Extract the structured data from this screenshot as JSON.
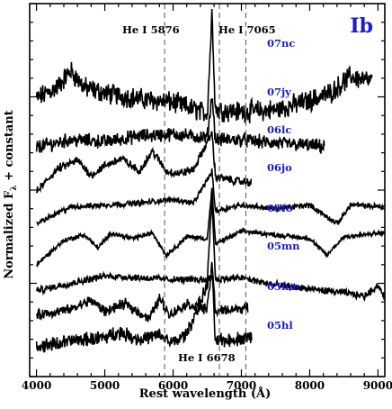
{
  "chart_data": {
    "type": "line",
    "panel_label": "Ib",
    "xlabel": "Rest wavelength (Å)",
    "ylabel": "Normalized F",
    "ylabel_sub": "λ",
    "ylabel_suffix": " + constant",
    "xlim": [
      3900,
      9100
    ],
    "x_ticks": [
      4000,
      5000,
      6000,
      7000,
      8000,
      9000
    ],
    "grid": false,
    "legend": "none",
    "label_color": "#1a1ad6",
    "line_color": "#000000",
    "reference_lines": [
      {
        "label": "He I 5876",
        "x": 5876
      },
      {
        "label": "He I 6678",
        "x": 6678
      },
      {
        "label": "He I 7065",
        "x": 7065
      }
    ],
    "series": [
      {
        "name": "07nc",
        "x_start": 4000,
        "x_end": 8920,
        "baseline": 14.0,
        "profile": [
          [
            4000,
            -0.6
          ],
          [
            4300,
            0.0
          ],
          [
            4500,
            0.9
          ],
          [
            4700,
            0.0
          ],
          [
            5000,
            -0.3
          ],
          [
            5500,
            -0.6
          ],
          [
            6000,
            -0.8
          ],
          [
            6500,
            -1.4
          ],
          [
            6570,
            4.0
          ],
          [
            6620,
            -1.2
          ],
          [
            7000,
            -1.3
          ],
          [
            7500,
            -1.2
          ],
          [
            8000,
            -0.7
          ],
          [
            8300,
            -0.3
          ],
          [
            8600,
            0.6
          ],
          [
            8920,
            0.3
          ]
        ],
        "noise": 0.45
      },
      {
        "name": "07jy",
        "x_start": 4000,
        "x_end": 8220,
        "baseline": 11.4,
        "profile": [
          [
            4000,
            -0.6
          ],
          [
            4500,
            -0.2
          ],
          [
            5000,
            -0.3
          ],
          [
            5500,
            0.0
          ],
          [
            6000,
            0.1
          ],
          [
            6500,
            -0.1
          ],
          [
            6570,
            2.2
          ],
          [
            6620,
            -0.2
          ],
          [
            7000,
            -0.2
          ],
          [
            7500,
            -0.4
          ],
          [
            8000,
            -0.5
          ],
          [
            8220,
            -0.6
          ]
        ],
        "noise": 0.3
      },
      {
        "name": "06lc",
        "x_start": 4000,
        "x_end": 7150,
        "baseline": 9.2,
        "profile": [
          [
            4000,
            -0.8
          ],
          [
            4300,
            0.4
          ],
          [
            4600,
            0.9
          ],
          [
            4800,
            0.1
          ],
          [
            5000,
            0.6
          ],
          [
            5250,
            1.0
          ],
          [
            5500,
            0.3
          ],
          [
            5700,
            1.4
          ],
          [
            5900,
            0.3
          ],
          [
            6100,
            0.2
          ],
          [
            6300,
            0.4
          ],
          [
            6570,
            2.4
          ],
          [
            6620,
            0.0
          ],
          [
            6900,
            -0.2
          ],
          [
            7150,
            -0.3
          ]
        ],
        "noise": 0.18
      },
      {
        "name": "06jo",
        "x_start": 4000,
        "x_end": 9100,
        "baseline": 7.3,
        "profile": [
          [
            4000,
            -0.6
          ],
          [
            4500,
            0.3
          ],
          [
            5000,
            0.4
          ],
          [
            5500,
            0.5
          ],
          [
            6000,
            0.7
          ],
          [
            6300,
            0.5
          ],
          [
            6570,
            2.2
          ],
          [
            6620,
            0.1
          ],
          [
            7000,
            0.4
          ],
          [
            7500,
            0.2
          ],
          [
            8000,
            0.4
          ],
          [
            8400,
            -0.6
          ],
          [
            8600,
            0.4
          ],
          [
            9100,
            0.3
          ]
        ],
        "noise": 0.12
      },
      {
        "name": "06fo",
        "x_start": 4000,
        "x_end": 9100,
        "baseline": 5.6,
        "profile": [
          [
            4000,
            -1.1
          ],
          [
            4400,
            0.2
          ],
          [
            4700,
            0.5
          ],
          [
            4900,
            -0.2
          ],
          [
            5100,
            0.6
          ],
          [
            5400,
            0.3
          ],
          [
            5700,
            0.6
          ],
          [
            5900,
            -0.6
          ],
          [
            6200,
            0.4
          ],
          [
            6500,
            0.3
          ],
          [
            6570,
            3.0
          ],
          [
            6620,
            0.0
          ],
          [
            7000,
            0.7
          ],
          [
            7500,
            0.5
          ],
          [
            8000,
            0.3
          ],
          [
            8250,
            -0.6
          ],
          [
            8500,
            0.4
          ],
          [
            9100,
            0.6
          ]
        ],
        "noise": 0.1
      },
      {
        "name": "05mn",
        "x_start": 4000,
        "x_end": 9100,
        "baseline": 3.6,
        "profile": [
          [
            4000,
            -0.5
          ],
          [
            4500,
            -0.1
          ],
          [
            5000,
            0.3
          ],
          [
            5500,
            0.2
          ],
          [
            6000,
            0.1
          ],
          [
            6500,
            0.1
          ],
          [
            6570,
            4.5
          ],
          [
            6620,
            0.1
          ],
          [
            7000,
            0.2
          ],
          [
            7500,
            -0.2
          ],
          [
            8000,
            -0.4
          ],
          [
            8500,
            -0.6
          ],
          [
            8800,
            -0.8
          ],
          [
            9000,
            -0.2
          ],
          [
            9100,
            -0.9
          ]
        ],
        "noise": 0.15
      },
      {
        "name": "05hm",
        "x_start": 4000,
        "x_end": 7100,
        "baseline": 2.1,
        "profile": [
          [
            4000,
            -0.3
          ],
          [
            4500,
            0.0
          ],
          [
            4800,
            0.5
          ],
          [
            5000,
            -0.1
          ],
          [
            5300,
            0.3
          ],
          [
            5650,
            -0.5
          ],
          [
            5800,
            0.6
          ],
          [
            5950,
            -0.3
          ],
          [
            6200,
            0.3
          ],
          [
            6500,
            0.0
          ],
          [
            6570,
            2.5
          ],
          [
            6620,
            -0.1
          ],
          [
            7100,
            0.1
          ]
        ],
        "noise": 0.22
      },
      {
        "name": "05hl",
        "x_start": 4000,
        "x_end": 7150,
        "baseline": 0.6,
        "profile": [
          [
            4000,
            -0.5
          ],
          [
            4500,
            -0.2
          ],
          [
            5000,
            0.0
          ],
          [
            5200,
            0.3
          ],
          [
            5500,
            -0.1
          ],
          [
            5800,
            0.1
          ],
          [
            6000,
            -0.3
          ],
          [
            6200,
            0.2
          ],
          [
            6570,
            3.4
          ],
          [
            6620,
            -0.2
          ],
          [
            7150,
            0.0
          ]
        ],
        "noise": 0.3
      }
    ]
  }
}
